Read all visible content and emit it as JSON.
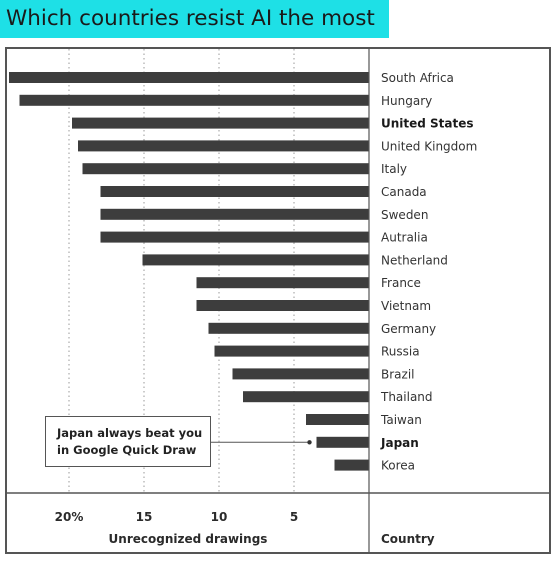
{
  "title": "Which countries resist AI the most",
  "annotation": {
    "lines": [
      "Japan always beat you",
      "in Google Quick Draw"
    ]
  },
  "colors": {
    "title_bg": "#1ee0e6",
    "bar": "#3d3d3d",
    "frame": "#555555"
  },
  "chart_data": {
    "type": "bar",
    "orientation": "horizontal",
    "x_direction": "reversed",
    "xlabel": "Unrecognized drawings",
    "ylabel": "Country",
    "xlim": [
      0,
      24.3
    ],
    "x_ticks": [
      20,
      15,
      10,
      5
    ],
    "x_tick_labels": [
      "20%",
      "15",
      "10",
      "5"
    ],
    "grid": "vertical dotted",
    "categories": [
      "South Africa",
      "Hungary",
      "United States",
      "United Kingdom",
      "Italy",
      "Canada",
      "Sweden",
      "Autralia",
      "Netherland",
      "France",
      "Vietnam",
      "Germany",
      "Russia",
      "Brazil",
      "Thailand",
      "Taiwan",
      "Japan",
      "Korea"
    ],
    "values": [
      24.0,
      23.3,
      19.8,
      19.4,
      19.1,
      17.9,
      17.9,
      17.9,
      15.1,
      11.5,
      11.5,
      10.7,
      10.3,
      9.1,
      8.4,
      4.2,
      3.5,
      2.3
    ],
    "highlighted": [
      "United States",
      "Japan"
    ]
  }
}
